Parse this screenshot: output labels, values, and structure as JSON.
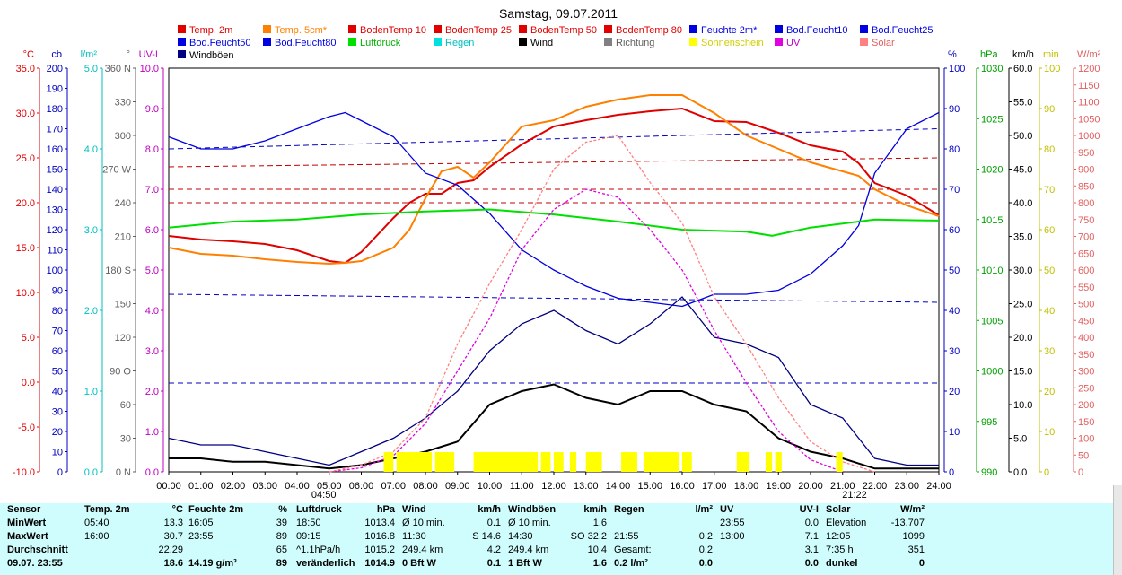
{
  "chart_data": {
    "type": "line",
    "title": "Samstag, 09.07.2011",
    "x_ticks": [
      "00:00",
      "01:00",
      "02:00",
      "03:00",
      "04:00",
      "05:00",
      "06:00",
      "07:00",
      "08:00",
      "09:00",
      "10:00",
      "11:00",
      "12:00",
      "13:00",
      "14:00",
      "15:00",
      "16:00",
      "17:00",
      "18:00",
      "19:00",
      "20:00",
      "21:00",
      "22:00",
      "23:00",
      "24:00"
    ],
    "sunrise": "04:50",
    "sunset": "21:22",
    "legend": [
      {
        "name": "Temp. 2m",
        "color": "#e00000"
      },
      {
        "name": "Temp. 5cm*",
        "color": "#ff8000"
      },
      {
        "name": "BodenTemp 10",
        "color": "#e00000"
      },
      {
        "name": "BodenTemp 25",
        "color": "#e00000"
      },
      {
        "name": "BodenTemp 50",
        "color": "#e00000"
      },
      {
        "name": "BodenTemp 80",
        "color": "#e00000"
      },
      {
        "name": "Feuchte 2m*",
        "color": "#0000e0"
      },
      {
        "name": "Bod.Feucht10",
        "color": "#0000e0"
      },
      {
        "name": "Bod.Feucht25",
        "color": "#0000e0"
      },
      {
        "name": "Bod.Feucht50",
        "color": "#0000e0"
      },
      {
        "name": "Bod.Feucht80",
        "color": "#0000e0"
      },
      {
        "name": "Luftdruck",
        "color": "#00e000"
      },
      {
        "name": "Regen",
        "color": "#00e0e0"
      },
      {
        "name": "Wind",
        "color": "#000000"
      },
      {
        "name": "Richtung",
        "color": "#808080"
      },
      {
        "name": "Sonnenschein",
        "color": "#ffff00"
      },
      {
        "name": "UV",
        "color": "#e000e0"
      },
      {
        "name": "Solar",
        "color": "#ff8080"
      },
      {
        "name": "Windböen",
        "color": "#000080"
      }
    ],
    "axes_left": [
      {
        "unit": "°C",
        "color": "#e00000",
        "ticks": [
          "35.0",
          "30.0",
          "25.0",
          "20.0",
          "15.0",
          "10.0",
          "5.0",
          "0.0",
          "-5.0",
          "-10.0"
        ],
        "range": [
          -10,
          35
        ]
      },
      {
        "unit": "cb",
        "color": "#0000c0",
        "ticks": [
          "200",
          "190",
          "180",
          "170",
          "160",
          "150",
          "140",
          "130",
          "120",
          "110",
          "100",
          "90",
          "80",
          "70",
          "60",
          "50",
          "40",
          "30",
          "20",
          "10",
          "0"
        ],
        "range": [
          0,
          200
        ]
      },
      {
        "unit": "l/m²",
        "color": "#00c0c0",
        "ticks": [
          "5.0",
          "4.0",
          "3.0",
          "2.0",
          "1.0",
          "0.0"
        ],
        "range": [
          0,
          5
        ]
      },
      {
        "unit": "°",
        "color": "#606060",
        "ticks": [
          "360 N",
          "330",
          "300",
          "270 W",
          "240",
          "210",
          "180 S",
          "150",
          "120",
          "90 O",
          "60",
          "30",
          "0 N"
        ],
        "range": [
          0,
          360
        ]
      },
      {
        "unit": "UV-I",
        "color": "#c000c0",
        "ticks": [
          "10.0",
          "9.0",
          "8.0",
          "7.0",
          "6.0",
          "5.0",
          "4.0",
          "3.0",
          "2.0",
          "1.0",
          "0.0"
        ],
        "range": [
          0,
          10
        ]
      }
    ],
    "axes_right": [
      {
        "unit": "%",
        "color": "#0000c0",
        "ticks": [
          "100",
          "90",
          "80",
          "70",
          "60",
          "50",
          "40",
          "30",
          "20",
          "10",
          "0"
        ],
        "range": [
          0,
          100
        ]
      },
      {
        "unit": "hPa",
        "color": "#00a000",
        "ticks": [
          "1030",
          "1025",
          "1020",
          "1015",
          "1010",
          "1005",
          "1000",
          "995",
          "990"
        ],
        "range": [
          990,
          1030
        ]
      },
      {
        "unit": "km/h",
        "color": "#000000",
        "ticks": [
          "60.0",
          "55.0",
          "50.0",
          "45.0",
          "40.0",
          "35.0",
          "30.0",
          "25.0",
          "20.0",
          "15.0",
          "10.0",
          "5.0",
          "0.0"
        ],
        "range": [
          0,
          60
        ]
      },
      {
        "unit": "min",
        "color": "#c0c000",
        "ticks": [
          "100",
          "90",
          "80",
          "70",
          "60",
          "50",
          "40",
          "30",
          "20",
          "10",
          "0"
        ],
        "range": [
          0,
          100
        ]
      },
      {
        "unit": "W/m²",
        "color": "#e06060",
        "ticks": [
          "1200",
          "1150",
          "1100",
          "1050",
          "1000",
          "950",
          "900",
          "850",
          "800",
          "750",
          "700",
          "650",
          "600",
          "550",
          "500",
          "450",
          "400",
          "350",
          "300",
          "250",
          "200",
          "150",
          "100",
          "50",
          "0"
        ],
        "range": [
          0,
          1200
        ]
      }
    ],
    "series": [
      {
        "name": "Temp. 2m",
        "color": "#e00000",
        "axis": "°C",
        "x": [
          0,
          1,
          2,
          3,
          4,
          5,
          5.5,
          6,
          7,
          7.5,
          8,
          8.5,
          9,
          9.5,
          10,
          11,
          12,
          13,
          14,
          15,
          16,
          17,
          18,
          19,
          20,
          21,
          21.5,
          22,
          23,
          24
        ],
        "y": [
          16.3,
          15.9,
          15.7,
          15.4,
          14.7,
          13.5,
          13.3,
          14.5,
          18.3,
          20.0,
          21.0,
          21.0,
          22.2,
          22.5,
          24.0,
          26.5,
          28.5,
          29.2,
          29.8,
          30.2,
          30.5,
          29.1,
          29.0,
          27.8,
          26.4,
          25.7,
          24.4,
          22.2,
          20.8,
          18.6
        ]
      },
      {
        "name": "Temp. 5cm*",
        "color": "#ff8000",
        "axis": "°C",
        "x": [
          0,
          1,
          2,
          3,
          4,
          5,
          5.5,
          6,
          7,
          7.5,
          8,
          8.5,
          9,
          9.5,
          10,
          11,
          12,
          13,
          14,
          15,
          16,
          17,
          18,
          19,
          20,
          21,
          21.5,
          22,
          23,
          24
        ],
        "y": [
          15.0,
          14.3,
          14.1,
          13.7,
          13.4,
          13.2,
          13.3,
          13.5,
          15.0,
          17.0,
          20.5,
          23.5,
          24.0,
          22.8,
          24.5,
          28.5,
          29.2,
          30.7,
          31.5,
          32.0,
          32.0,
          30.0,
          27.5,
          26.0,
          24.5,
          23.5,
          23.0,
          21.5,
          19.7,
          18.5
        ]
      },
      {
        "name": "Feuchte 2m*",
        "color": "#0000e0",
        "axis": "%",
        "x": [
          0,
          1,
          2,
          3,
          4,
          5,
          5.5,
          6,
          7,
          8,
          9,
          10,
          11,
          12,
          13,
          14,
          15,
          16,
          17,
          18,
          19,
          20,
          21,
          21.5,
          22,
          23,
          24
        ],
        "y": [
          83,
          80,
          80,
          82,
          85,
          88,
          89,
          87,
          83,
          74,
          71,
          64,
          55,
          50,
          46,
          43,
          42,
          41,
          44,
          44,
          45,
          49,
          56,
          61,
          74,
          85,
          89
        ]
      },
      {
        "name": "Luftdruck",
        "color": "#00e000",
        "axis": "hPa",
        "x": [
          0,
          2,
          4,
          6,
          8,
          10,
          12,
          14,
          16,
          18,
          18.8,
          20,
          22,
          24
        ],
        "y": [
          1014.2,
          1014.8,
          1015.0,
          1015.5,
          1015.8,
          1016.0,
          1015.5,
          1014.8,
          1014.0,
          1013.8,
          1013.4,
          1014.2,
          1015.0,
          1014.9
        ]
      },
      {
        "name": "Wind",
        "color": "#000000",
        "axis": "km/h",
        "x": [
          0,
          1,
          2,
          3,
          4,
          5,
          6,
          7,
          8,
          9,
          10,
          11,
          12,
          13,
          14,
          15,
          16,
          17,
          18,
          19,
          20,
          21,
          22,
          23,
          24
        ],
        "y": [
          2,
          2,
          1.5,
          1.5,
          1,
          0.5,
          1,
          2,
          3,
          4.5,
          10,
          12,
          13,
          11,
          10,
          12,
          12,
          10,
          9,
          5,
          3,
          2,
          0.5,
          0.5,
          0.5
        ]
      },
      {
        "name": "Windböen",
        "color": "#000080",
        "axis": "km/h",
        "x": [
          0,
          1,
          2,
          3,
          4,
          5,
          6,
          7,
          8,
          9,
          10,
          11,
          12,
          13,
          14,
          15,
          16,
          17,
          18,
          19,
          20,
          21,
          22,
          23,
          24
        ],
        "y": [
          5,
          4,
          4,
          3,
          2,
          1,
          3,
          5,
          8,
          12,
          18,
          22,
          24,
          21,
          19,
          22,
          26,
          20,
          19,
          17,
          10,
          8,
          2,
          1,
          1
        ]
      },
      {
        "name": "UV",
        "color": "#e000e0",
        "axis": "UV-I",
        "x": [
          5,
          6,
          7,
          8,
          9,
          10,
          11,
          12,
          13,
          14,
          15,
          16,
          17,
          18,
          19,
          20,
          21
        ],
        "y": [
          0,
          0.1,
          0.4,
          1.2,
          2.5,
          3.8,
          5.5,
          6.5,
          7.0,
          6.8,
          6.0,
          5.0,
          3.5,
          2.2,
          1.0,
          0.3,
          0
        ]
      },
      {
        "name": "Solar",
        "color": "#ff8080",
        "axis": "W/m²",
        "x": [
          5,
          6,
          7,
          8,
          9,
          10,
          11,
          12,
          13,
          14,
          15,
          16,
          17,
          18,
          19,
          20,
          21,
          22
        ],
        "y": [
          0,
          20,
          60,
          160,
          380,
          560,
          720,
          900,
          980,
          1000,
          860,
          740,
          520,
          380,
          220,
          90,
          30,
          0
        ]
      }
    ]
  },
  "stats": {
    "cols": [
      {
        "head": [
          "Sensor",
          ""
        ],
        "rows": [
          [
            "MinWert",
            ""
          ],
          [
            "MaxWert",
            ""
          ],
          [
            "Durchschnitt",
            ""
          ],
          [
            "09.07. 23:55",
            ""
          ]
        ]
      },
      {
        "head": [
          "Temp. 2m",
          "°C"
        ],
        "rows": [
          [
            "05:40",
            "13.3"
          ],
          [
            "16:00",
            "30.7"
          ],
          [
            "",
            "22.29"
          ],
          [
            "",
            "18.6"
          ]
        ]
      },
      {
        "head": [
          "Feuchte 2m",
          "%"
        ],
        "rows": [
          [
            "16:05",
            "39"
          ],
          [
            "23:55",
            "89"
          ],
          [
            "",
            "65"
          ],
          [
            "14.19 g/m³",
            "89"
          ]
        ]
      },
      {
        "head": [
          "Luftdruck",
          "hPa"
        ],
        "rows": [
          [
            "18:50",
            "1013.4"
          ],
          [
            "09:15",
            "1016.8"
          ],
          [
            "^1.1hPa/h",
            "1015.2"
          ],
          [
            "veränderlich",
            "1014.9"
          ]
        ]
      },
      {
        "head": [
          "Wind",
          "km/h"
        ],
        "rows": [
          [
            "Ø 10 min.",
            "0.1"
          ],
          [
            "11:30",
            "S 14.6"
          ],
          [
            "249.4 km",
            "4.2"
          ],
          [
            "0 Bft W",
            "0.1"
          ]
        ]
      },
      {
        "head": [
          "Windböen",
          "km/h"
        ],
        "rows": [
          [
            "Ø 10 min.",
            "1.6"
          ],
          [
            "14:30",
            "SO 32.2"
          ],
          [
            "249.4 km",
            "10.4"
          ],
          [
            "1 Bft W",
            "1.6"
          ]
        ]
      },
      {
        "head": [
          "Regen",
          "l/m²"
        ],
        "rows": [
          [
            "",
            ""
          ],
          [
            "21:55",
            "0.2"
          ],
          [
            "Gesamt:",
            "0.2"
          ],
          [
            "0.2 l/m²",
            "0.0"
          ]
        ]
      },
      {
        "head": [
          "UV",
          "UV-I"
        ],
        "rows": [
          [
            "23:55",
            "0.0"
          ],
          [
            "13:00",
            "7.1"
          ],
          [
            "",
            "3.1"
          ],
          [
            "",
            "0.0"
          ]
        ]
      },
      {
        "head": [
          "Solar",
          "W/m²"
        ],
        "rows": [
          [
            "Elevation",
            "-13.707"
          ],
          [
            "12:05",
            "1099"
          ],
          [
            "7:35 h",
            "351"
          ],
          [
            "dunkel",
            "0"
          ]
        ]
      }
    ]
  }
}
